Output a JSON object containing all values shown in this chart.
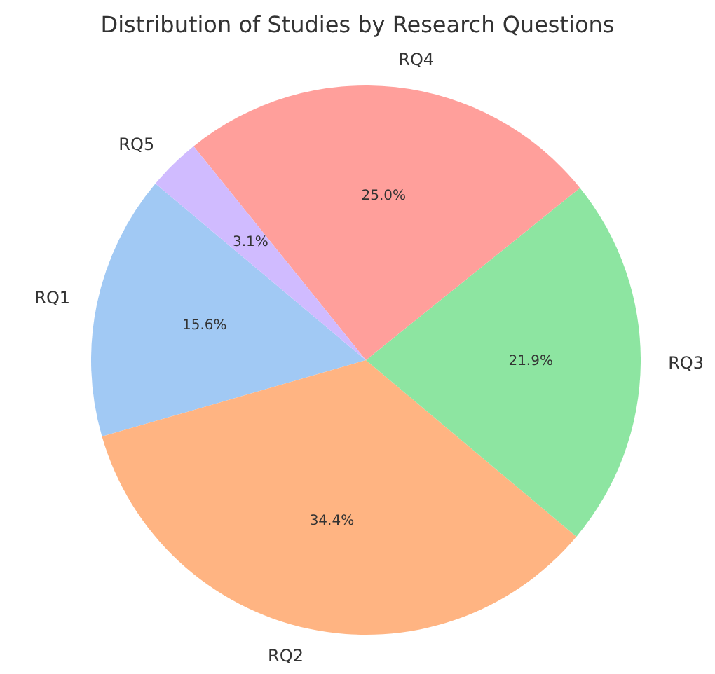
{
  "chart_data": {
    "type": "pie",
    "title": "Distribution of Studies by Research Questions",
    "categories": [
      "RQ1",
      "RQ2",
      "RQ3",
      "RQ4",
      "RQ5"
    ],
    "values": [
      15.6,
      34.4,
      21.9,
      25.0,
      3.1
    ],
    "colors": [
      "#a1c9f4",
      "#ffb482",
      "#8de5a1",
      "#ff9f9b",
      "#d0bbff"
    ],
    "value_labels": [
      "15.6%",
      "34.4%",
      "21.9%",
      "25.0%",
      "3.1%"
    ]
  }
}
